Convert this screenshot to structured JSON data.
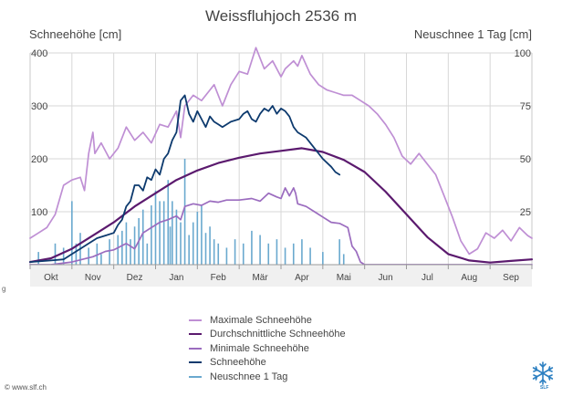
{
  "header": {
    "title": "Weissfluhjoch 2536 m",
    "left_axis_title": "Schneehöhe [cm]",
    "right_axis_title": "Neuschnee 1 Tag [cm]"
  },
  "footer": {
    "url": "© www.slf.ch",
    "mark": "g",
    "logo_text": "SLF"
  },
  "colors": {
    "max": "#bf8fd4",
    "avg": "#5b1a6e",
    "min": "#9b6cbf",
    "current": "#0d3a6e",
    "newsnow": "#6aa9cf",
    "grid": "#d7d7d7",
    "axis_text": "#444444"
  },
  "chart_data": {
    "type": "line",
    "x_unit": "month-index (0 = Oktober, 1 = November, ...)",
    "months": [
      "Okt",
      "Nov",
      "Dez",
      "Jan",
      "Feb",
      "Mär",
      "Apr",
      "Mai",
      "Jun",
      "Jul",
      "Aug",
      "Sep"
    ],
    "ylim_left": [
      0,
      400
    ],
    "yticks_left": [
      100,
      200,
      300,
      400
    ],
    "ylim_right": [
      0,
      100
    ],
    "yticks_right": [
      25,
      50,
      75,
      100
    ],
    "grid": true,
    "legend_position": "bottom",
    "series": [
      {
        "name": "Maximale Schneehöhe",
        "color_key": "max",
        "axis": "left",
        "points": [
          [
            -0.5,
            50
          ],
          [
            -0.3,
            60
          ],
          [
            -0.1,
            70
          ],
          [
            0.1,
            95
          ],
          [
            0.3,
            150
          ],
          [
            0.5,
            160
          ],
          [
            0.7,
            165
          ],
          [
            0.8,
            140
          ],
          [
            0.9,
            210
          ],
          [
            1.0,
            250
          ],
          [
            1.05,
            210
          ],
          [
            1.2,
            230
          ],
          [
            1.4,
            200
          ],
          [
            1.6,
            220
          ],
          [
            1.8,
            260
          ],
          [
            2.0,
            235
          ],
          [
            2.2,
            250
          ],
          [
            2.4,
            230
          ],
          [
            2.6,
            265
          ],
          [
            2.8,
            260
          ],
          [
            3.0,
            290
          ],
          [
            3.1,
            240
          ],
          [
            3.2,
            300
          ],
          [
            3.4,
            320
          ],
          [
            3.6,
            310
          ],
          [
            3.8,
            330
          ],
          [
            3.9,
            340
          ],
          [
            4.1,
            300
          ],
          [
            4.3,
            340
          ],
          [
            4.5,
            365
          ],
          [
            4.7,
            360
          ],
          [
            4.9,
            410
          ],
          [
            5.1,
            370
          ],
          [
            5.3,
            385
          ],
          [
            5.5,
            355
          ],
          [
            5.6,
            370
          ],
          [
            5.8,
            385
          ],
          [
            5.9,
            375
          ],
          [
            6.0,
            395
          ],
          [
            6.2,
            360
          ],
          [
            6.4,
            340
          ],
          [
            6.6,
            330
          ],
          [
            6.8,
            325
          ],
          [
            7.0,
            320
          ],
          [
            7.2,
            320
          ],
          [
            7.4,
            310
          ],
          [
            7.6,
            300
          ],
          [
            7.8,
            285
          ],
          [
            8.0,
            265
          ],
          [
            8.2,
            240
          ],
          [
            8.4,
            205
          ],
          [
            8.6,
            190
          ],
          [
            8.8,
            210
          ],
          [
            9.0,
            190
          ],
          [
            9.2,
            170
          ],
          [
            9.4,
            130
          ],
          [
            9.6,
            90
          ],
          [
            9.8,
            45
          ],
          [
            10.0,
            20
          ],
          [
            10.2,
            30
          ],
          [
            10.4,
            60
          ],
          [
            10.6,
            50
          ],
          [
            10.8,
            65
          ],
          [
            11.0,
            45
          ],
          [
            11.2,
            70
          ],
          [
            11.4,
            55
          ],
          [
            11.5,
            50
          ]
        ]
      },
      {
        "name": "Durchschnittliche Schneehöhe",
        "color_key": "avg",
        "axis": "left",
        "points": [
          [
            -0.5,
            5
          ],
          [
            0,
            12
          ],
          [
            0.5,
            30
          ],
          [
            1,
            55
          ],
          [
            1.5,
            80
          ],
          [
            2,
            110
          ],
          [
            2.5,
            135
          ],
          [
            3,
            160
          ],
          [
            3.5,
            178
          ],
          [
            4,
            192
          ],
          [
            4.5,
            202
          ],
          [
            5,
            210
          ],
          [
            5.5,
            215
          ],
          [
            6,
            220
          ],
          [
            6.5,
            213
          ],
          [
            7,
            198
          ],
          [
            7.5,
            175
          ],
          [
            8,
            138
          ],
          [
            8.5,
            95
          ],
          [
            9,
            52
          ],
          [
            9.5,
            20
          ],
          [
            10,
            8
          ],
          [
            10.5,
            4
          ],
          [
            11,
            7
          ],
          [
            11.5,
            10
          ]
        ]
      },
      {
        "name": "Minimale Schneehöhe",
        "color_key": "min",
        "axis": "left",
        "points": [
          [
            -0.5,
            0
          ],
          [
            0,
            0
          ],
          [
            0.5,
            5
          ],
          [
            1,
            15
          ],
          [
            1.3,
            25
          ],
          [
            1.5,
            28
          ],
          [
            1.8,
            40
          ],
          [
            2,
            30
          ],
          [
            2.2,
            60
          ],
          [
            2.4,
            70
          ],
          [
            2.6,
            80
          ],
          [
            2.8,
            85
          ],
          [
            3.0,
            92
          ],
          [
            3.1,
            85
          ],
          [
            3.2,
            110
          ],
          [
            3.4,
            115
          ],
          [
            3.6,
            112
          ],
          [
            3.8,
            120
          ],
          [
            4.0,
            118
          ],
          [
            4.2,
            122
          ],
          [
            4.5,
            122
          ],
          [
            4.8,
            125
          ],
          [
            5.0,
            120
          ],
          [
            5.2,
            135
          ],
          [
            5.4,
            128
          ],
          [
            5.5,
            125
          ],
          [
            5.6,
            145
          ],
          [
            5.7,
            130
          ],
          [
            5.8,
            145
          ],
          [
            5.85,
            135
          ],
          [
            5.9,
            115
          ],
          [
            6.1,
            110
          ],
          [
            6.3,
            100
          ],
          [
            6.5,
            90
          ],
          [
            6.7,
            80
          ],
          [
            6.9,
            78
          ],
          [
            7.1,
            70
          ],
          [
            7.2,
            35
          ],
          [
            7.3,
            25
          ],
          [
            7.4,
            5
          ],
          [
            7.5,
            0
          ],
          [
            11.5,
            0
          ]
        ]
      },
      {
        "name": "Schneehöhe",
        "color_key": "current",
        "axis": "left",
        "points": [
          [
            -0.5,
            5
          ],
          [
            0,
            8
          ],
          [
            0.3,
            10
          ],
          [
            0.5,
            20
          ],
          [
            0.7,
            30
          ],
          [
            0.9,
            40
          ],
          [
            1.1,
            50
          ],
          [
            1.3,
            55
          ],
          [
            1.5,
            60
          ],
          [
            1.6,
            75
          ],
          [
            1.7,
            85
          ],
          [
            1.8,
            110
          ],
          [
            1.9,
            120
          ],
          [
            2.0,
            150
          ],
          [
            2.1,
            150
          ],
          [
            2.2,
            140
          ],
          [
            2.3,
            165
          ],
          [
            2.4,
            160
          ],
          [
            2.5,
            180
          ],
          [
            2.6,
            170
          ],
          [
            2.7,
            200
          ],
          [
            2.8,
            210
          ],
          [
            2.9,
            235
          ],
          [
            3.0,
            250
          ],
          [
            3.1,
            310
          ],
          [
            3.2,
            320
          ],
          [
            3.3,
            285
          ],
          [
            3.4,
            270
          ],
          [
            3.5,
            290
          ],
          [
            3.6,
            275
          ],
          [
            3.7,
            260
          ],
          [
            3.8,
            280
          ],
          [
            3.9,
            270
          ],
          [
            4.0,
            265
          ],
          [
            4.1,
            260
          ],
          [
            4.3,
            270
          ],
          [
            4.5,
            275
          ],
          [
            4.6,
            285
          ],
          [
            4.7,
            290
          ],
          [
            4.8,
            275
          ],
          [
            4.9,
            270
          ],
          [
            5.0,
            285
          ],
          [
            5.1,
            295
          ],
          [
            5.2,
            290
          ],
          [
            5.3,
            300
          ],
          [
            5.4,
            285
          ],
          [
            5.5,
            295
          ],
          [
            5.6,
            290
          ],
          [
            5.7,
            280
          ],
          [
            5.8,
            260
          ],
          [
            5.9,
            250
          ],
          [
            6.0,
            245
          ],
          [
            6.1,
            240
          ],
          [
            6.3,
            220
          ],
          [
            6.5,
            200
          ],
          [
            6.7,
            185
          ],
          [
            6.8,
            175
          ],
          [
            6.9,
            170
          ]
        ]
      }
    ],
    "newsnow_bars": {
      "name": "Neuschnee 1 Tag",
      "color_key": "newsnow",
      "axis": "right",
      "bars": [
        [
          -0.3,
          6
        ],
        [
          0.1,
          10
        ],
        [
          0.3,
          8
        ],
        [
          0.5,
          30
        ],
        [
          0.6,
          10
        ],
        [
          0.7,
          15
        ],
        [
          0.9,
          8
        ],
        [
          1.1,
          10
        ],
        [
          1.2,
          5
        ],
        [
          1.4,
          12
        ],
        [
          1.6,
          14
        ],
        [
          1.7,
          16
        ],
        [
          1.8,
          20
        ],
        [
          1.9,
          12
        ],
        [
          2.0,
          18
        ],
        [
          2.1,
          22
        ],
        [
          2.2,
          26
        ],
        [
          2.3,
          10
        ],
        [
          2.4,
          28
        ],
        [
          2.5,
          35
        ],
        [
          2.6,
          30
        ],
        [
          2.7,
          30
        ],
        [
          2.8,
          40
        ],
        [
          2.85,
          18
        ],
        [
          2.9,
          30
        ],
        [
          3.0,
          26
        ],
        [
          3.1,
          20
        ],
        [
          3.2,
          50
        ],
        [
          3.3,
          14
        ],
        [
          3.4,
          20
        ],
        [
          3.5,
          25
        ],
        [
          3.6,
          28
        ],
        [
          3.7,
          15
        ],
        [
          3.8,
          18
        ],
        [
          3.9,
          12
        ],
        [
          4.0,
          10
        ],
        [
          4.2,
          8
        ],
        [
          4.4,
          12
        ],
        [
          4.6,
          10
        ],
        [
          4.8,
          16
        ],
        [
          5.0,
          14
        ],
        [
          5.2,
          10
        ],
        [
          5.4,
          12
        ],
        [
          5.6,
          8
        ],
        [
          5.8,
          10
        ],
        [
          6.0,
          12
        ],
        [
          6.2,
          8
        ],
        [
          6.5,
          6
        ],
        [
          6.9,
          12
        ],
        [
          7.0,
          5
        ]
      ]
    }
  }
}
